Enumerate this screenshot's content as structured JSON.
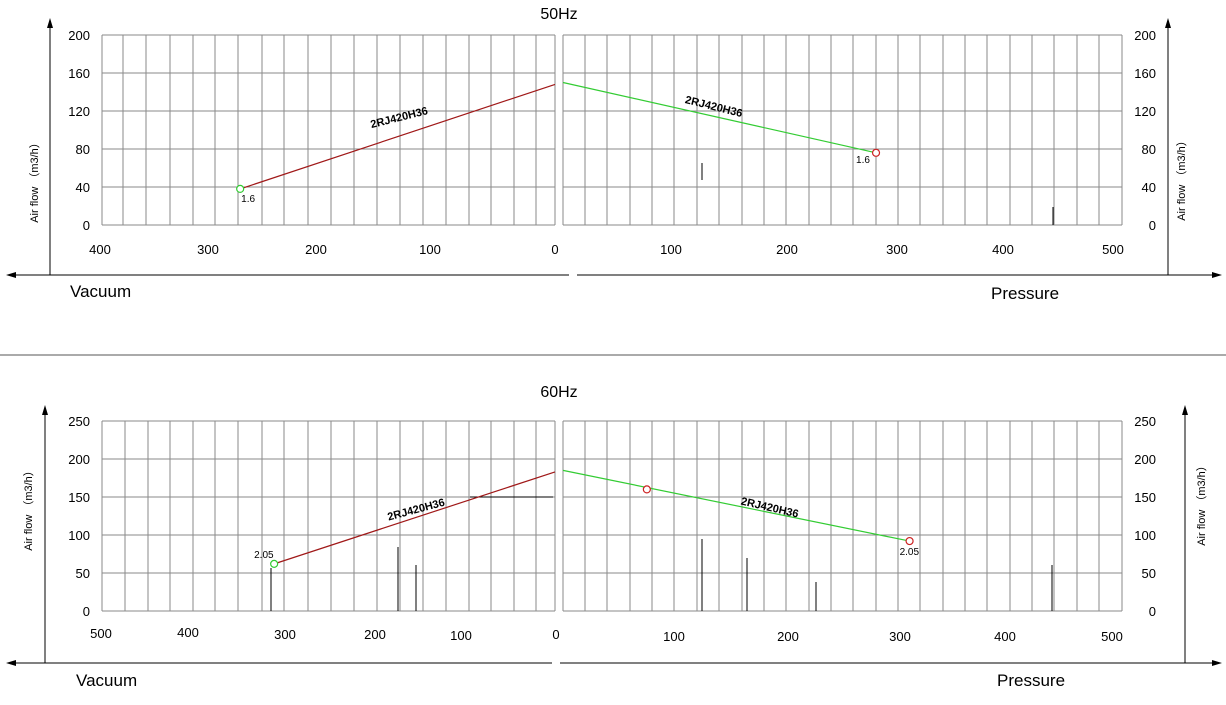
{
  "chart_data": [
    {
      "type": "line",
      "title": "50Hz",
      "ylabel": "Air flow （m3/h）",
      "panels": {
        "vacuum": {
          "label": "Vacuum",
          "xlim": [
            400,
            0
          ],
          "ylim": [
            0,
            200
          ],
          "x_ticks": [
            "400",
            "300",
            "200",
            "100",
            "0"
          ],
          "y_ticks": [
            "0",
            "40",
            "80",
            "120",
            "160",
            "200"
          ],
          "series": [
            {
              "name": "2RJ420H36",
              "color": "#a01818",
              "x": [
                278,
                0
              ],
              "y": [
                38,
                148
              ]
            }
          ],
          "markers": [
            {
              "x": 278,
              "y": 38,
              "color": "#33cc33",
              "label": "1.6"
            }
          ]
        },
        "pressure": {
          "label": "Pressure",
          "xlim": [
            0,
            500
          ],
          "ylim": [
            0,
            200
          ],
          "x_ticks": [
            "100",
            "200",
            "300",
            "400",
            "500"
          ],
          "y_ticks": [
            "0",
            "40",
            "80",
            "120",
            "160",
            "200"
          ],
          "series": [
            {
              "name": "2RJ420H36",
              "color": "#33cc33",
              "x": [
                0,
                280
              ],
              "y": [
                150,
                76
              ]
            }
          ],
          "markers": [
            {
              "x": 280,
              "y": 76,
              "color": "#cc2222",
              "label": "1.6"
            }
          ]
        }
      }
    },
    {
      "type": "line",
      "title": "60Hz",
      "ylabel": "Air flow （m3/h）",
      "panels": {
        "vacuum": {
          "label": "Vacuum",
          "xlim": [
            500,
            0
          ],
          "ylim": [
            0,
            250
          ],
          "x_ticks": [
            "500",
            "400",
            "300",
            "200",
            "100",
            "0"
          ],
          "y_ticks": [
            "0",
            "50",
            "100",
            "150",
            "200",
            "250"
          ],
          "series": [
            {
              "name": "2RJ420H36",
              "color": "#a01818",
              "x": [
                310,
                0
              ],
              "y": [
                62,
                183
              ]
            }
          ],
          "markers": [
            {
              "x": 310,
              "y": 62,
              "color": "#33cc33",
              "label": "2.05"
            }
          ]
        },
        "pressure": {
          "label": "Pressure",
          "xlim": [
            0,
            500
          ],
          "ylim": [
            0,
            250
          ],
          "x_ticks": [
            "100",
            "200",
            "300",
            "400",
            "500"
          ],
          "y_ticks": [
            "0",
            "50",
            "100",
            "150",
            "200",
            "250"
          ],
          "series": [
            {
              "name": "2RJ420H36",
              "color": "#33cc33",
              "x": [
                0,
                310
              ],
              "y": [
                185,
                92
              ]
            }
          ],
          "markers": [
            {
              "x": 75,
              "y": 160,
              "color": "#cc2222",
              "label": ""
            },
            {
              "x": 310,
              "y": 92,
              "color": "#cc2222",
              "label": "2.05"
            }
          ]
        }
      }
    }
  ]
}
